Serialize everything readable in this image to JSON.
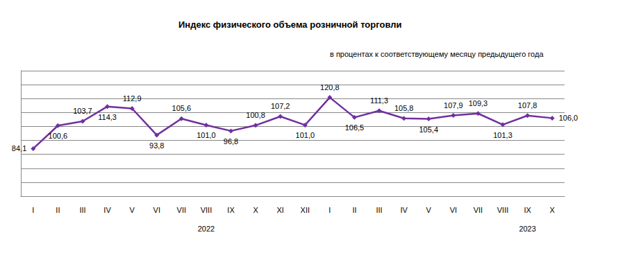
{
  "chart_data": {
    "type": "line",
    "title": "Индекс физического объема розничной торговли",
    "subtitle": "в процентах к соответствующему месяцу предыдущего года",
    "categories": [
      "I",
      "II",
      "III",
      "IV",
      "V",
      "VI",
      "VII",
      "VIII",
      "IX",
      "X",
      "XI",
      "XII",
      "I",
      "II",
      "III",
      "IV",
      "V",
      "VI",
      "VII",
      "VIII",
      "IX",
      "X"
    ],
    "year_labels": [
      null,
      null,
      null,
      null,
      null,
      null,
      null,
      "2022",
      null,
      null,
      null,
      null,
      null,
      null,
      null,
      null,
      null,
      null,
      null,
      null,
      "2023",
      null
    ],
    "values": [
      84.1,
      100.6,
      103.7,
      114.3,
      112.9,
      93.8,
      105.6,
      101.0,
      96.8,
      100.8,
      107.2,
      101.0,
      120.8,
      106.5,
      111.3,
      105.8,
      105.4,
      107.9,
      109.3,
      101.3,
      107.8,
      106.0
    ],
    "value_labels": [
      "84,1",
      "100,6",
      "103,7",
      "114,3",
      "112,9",
      "93,8",
      "105,6",
      "101,0",
      "96,8",
      "100,8",
      "107,2",
      "101,0",
      "120,8",
      "106,5",
      "111,3",
      "105,8",
      "105,4",
      "107,9",
      "109,3",
      "101,3",
      "107,8",
      "106,0"
    ],
    "color": "#7030a0",
    "marker": "diamond",
    "ylim": [
      50,
      140
    ],
    "yticks": [
      50,
      60,
      70,
      80,
      90,
      100,
      110,
      120,
      130,
      140
    ],
    "grid": true,
    "data_labels": true,
    "tick_labels": "x"
  }
}
